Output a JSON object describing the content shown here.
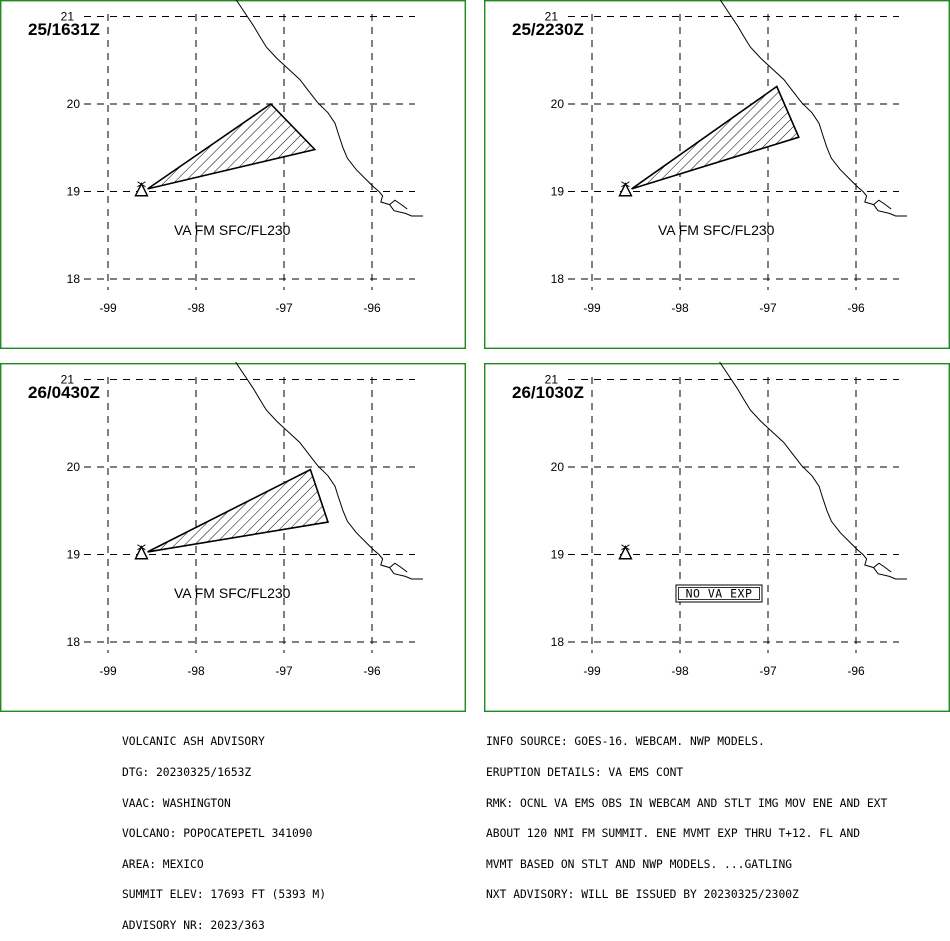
{
  "panels": [
    {
      "id": "p1",
      "time_label": "25/1631Z",
      "va_label": "VA FM SFC/FL230",
      "no_va_label": "",
      "plume": [
        [
          -98.55,
          19.03
        ],
        [
          -97.15,
          20.0
        ],
        [
          -96.65,
          19.48
        ],
        [
          -98.55,
          19.03
        ]
      ]
    },
    {
      "id": "p2",
      "time_label": "25/2230Z",
      "va_label": "VA FM SFC/FL230",
      "no_va_label": "",
      "plume": [
        [
          -98.55,
          19.03
        ],
        [
          -96.9,
          20.2
        ],
        [
          -96.65,
          19.62
        ],
        [
          -98.55,
          19.03
        ]
      ]
    },
    {
      "id": "p3",
      "time_label": "26/0430Z",
      "va_label": "VA FM SFC/FL230",
      "no_va_label": "",
      "plume": [
        [
          -98.55,
          19.03
        ],
        [
          -96.7,
          19.97
        ],
        [
          -96.5,
          19.37
        ],
        [
          -98.55,
          19.03
        ]
      ]
    },
    {
      "id": "p4",
      "time_label": "26/1030Z",
      "va_label": "",
      "no_va_label": "NO VA EXP",
      "plume": []
    }
  ],
  "axes": {
    "lon_ticks": [
      -99,
      -98,
      -97,
      -96
    ],
    "lat_ticks": [
      18,
      19,
      20,
      21
    ],
    "lon_tick_labels": [
      "-99",
      "-98",
      "-97",
      "-96"
    ],
    "lat_tick_labels": [
      "18",
      "19",
      "20",
      "21"
    ]
  },
  "volcano": {
    "lon": -98.62,
    "lat": 19.02,
    "icon": "volcano-triangle-icon"
  },
  "colors": {
    "frame": "#1f8a1f",
    "ink": "#000000"
  },
  "advisory_left": [
    "VOLCANIC ASH ADVISORY",
    "DTG: 20230325/1653Z",
    "VAAC: WASHINGTON",
    "VOLCANO: POPOCATEPETL 341090",
    "AREA: MEXICO",
    "SUMMIT ELEV: 17693 FT (5393 M)",
    "ADVISORY NR: 2023/363"
  ],
  "advisory_right": [
    "INFO SOURCE: GOES-16. WEBCAM. NWP MODELS.",
    "ERUPTION DETAILS: VA EMS CONT",
    "RMK: OCNL VA EMS OBS IN WEBCAM AND STLT IMG MOV ENE AND EXT",
    "ABOUT 120 NMI FM SUMMIT. ENE MVMT EXP THRU T+12. FL AND",
    "MVMT BASED ON STLT AND NWP MODELS. ...GATLING",
    "NXT ADVISORY: WILL BE ISSUED BY 20230325/2300Z"
  ]
}
